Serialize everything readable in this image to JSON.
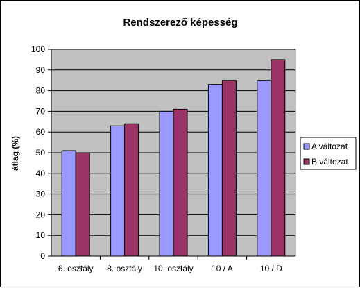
{
  "chart_data": {
    "type": "bar",
    "title": "Rendszerező képesség",
    "xlabel": "",
    "ylabel": "átlag (%)",
    "ylim": [
      0,
      100
    ],
    "yticks": [
      0,
      10,
      20,
      30,
      40,
      50,
      60,
      70,
      80,
      90,
      100
    ],
    "categories": [
      "6. osztály",
      "8. osztály",
      "10. osztály",
      "10 / A",
      "10 / D"
    ],
    "series": [
      {
        "name": "A változat",
        "color": "#9999ff",
        "values": [
          51,
          63,
          70,
          83,
          85
        ]
      },
      {
        "name": "B változat",
        "color": "#993366",
        "values": [
          50,
          64,
          71,
          85,
          95
        ]
      }
    ],
    "grid": true,
    "plot_background": "#c0c0c0",
    "legend_position": "right"
  }
}
